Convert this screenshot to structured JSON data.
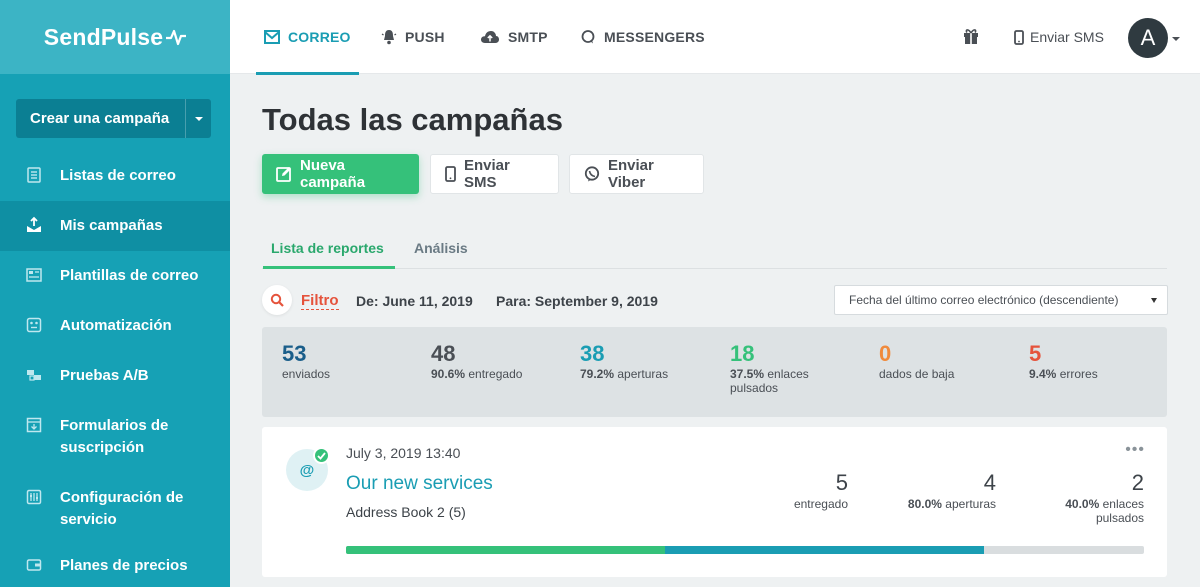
{
  "logo": {
    "text": "SendPulse"
  },
  "sidebar": {
    "create_label": "Crear una campaña",
    "items": [
      {
        "label": "Listas de correo",
        "icon": "list-icon"
      },
      {
        "label": "Mis campañas",
        "icon": "campaign-icon",
        "active": true
      },
      {
        "label": "Plantillas de correo",
        "icon": "template-icon"
      },
      {
        "label": "Automatización",
        "icon": "automation-icon"
      },
      {
        "label": "Pruebas A/B",
        "icon": "ab-test-icon"
      },
      {
        "label": "Formularios de suscripción",
        "icon": "form-icon"
      },
      {
        "label": "Configuración de servicio",
        "icon": "settings-icon"
      },
      {
        "label": "Planes de precios",
        "icon": "pricing-icon"
      }
    ]
  },
  "topbar": {
    "tabs": [
      {
        "label": "CORREO",
        "icon": "mail-icon",
        "active": true
      },
      {
        "label": "PUSH",
        "icon": "bell-icon"
      },
      {
        "label": "SMTP",
        "icon": "cloud-icon"
      },
      {
        "label": "MESSENGERS",
        "icon": "chat-icon"
      }
    ],
    "send_sms": "Enviar SMS",
    "avatar_letter": "A"
  },
  "page": {
    "title": "Todas las campañas",
    "buttons": {
      "new_campaign": "Nueva campaña",
      "send_sms": "Enviar SMS",
      "send_viber": "Enviar Viber"
    },
    "subtabs": {
      "reports": "Lista de reportes",
      "analysis": "Análisis"
    },
    "filter": {
      "label": "Filtro",
      "from": "De: June 11, 2019",
      "to": "Para: September 9, 2019",
      "sort": "Fecha del último correo electrónico (descendiente)"
    },
    "stats": [
      {
        "num": "53",
        "pct": "",
        "desc": "enviados",
        "color": "#1a5e8a"
      },
      {
        "num": "48",
        "pct": "90.6%",
        "desc": "entregado",
        "color": "#4a4f55"
      },
      {
        "num": "38",
        "pct": "79.2%",
        "desc": "aperturas",
        "color": "#1a9db3"
      },
      {
        "num": "18",
        "pct": "37.5%",
        "desc": "enlaces pulsados",
        "color": "#35c17a"
      },
      {
        "num": "0",
        "pct": "",
        "desc": "dados de baja",
        "color": "#f08a3c"
      },
      {
        "num": "5",
        "pct": "9.4%",
        "desc": "errores",
        "color": "#e5533c"
      }
    ],
    "campaign": {
      "date": "July 3, 2019 13:40",
      "title": "Our new services",
      "list": "Address Book 2 (5)",
      "more": "•••",
      "delivered_num": "5",
      "delivered_desc": "entregado",
      "opens_num": "4",
      "opens_pct": "80.0%",
      "opens_desc": "aperturas",
      "clicks_num": "2",
      "clicks_pct": "40.0%",
      "clicks_desc": "enlaces pulsados",
      "progress": {
        "green": 0.4,
        "blue": 0.4
      }
    }
  }
}
